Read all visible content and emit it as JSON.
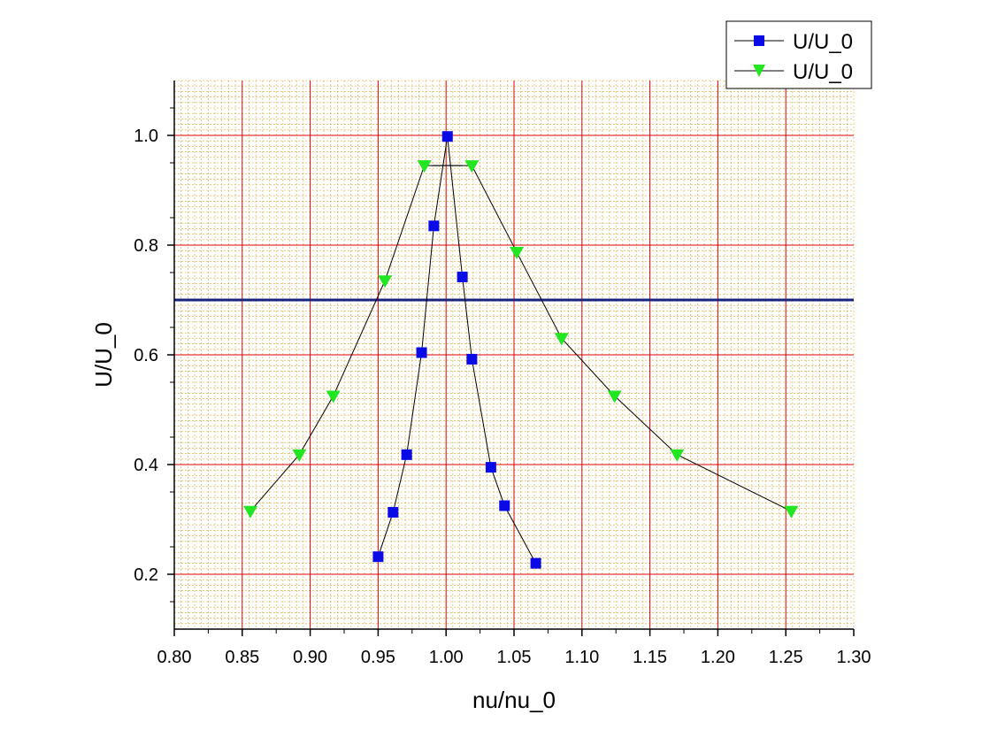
{
  "chart_data": {
    "type": "line",
    "xlabel": "nu/nu_0",
    "ylabel": "U/U_0",
    "xlim": [
      0.8,
      1.3
    ],
    "ylim": [
      0.1,
      1.1
    ],
    "x_ticks": [
      "0.80",
      "0.85",
      "0.90",
      "0.95",
      "1.00",
      "1.05",
      "1.10",
      "1.15",
      "1.20",
      "1.25",
      "1.30"
    ],
    "y_ticks": [
      "0.2",
      "0.4",
      "0.6",
      "0.8",
      "1.0"
    ],
    "grid": true,
    "minor_grid": true,
    "legend_position": "top-right",
    "reference_line": {
      "y": 0.7,
      "color": "#1a237e"
    },
    "series": [
      {
        "name": "U/U_0",
        "marker": "square",
        "color": "#0a0ae6",
        "x": [
          0.95,
          0.961,
          0.971,
          0.982,
          0.991,
          1.001,
          1.012,
          1.019,
          1.033,
          1.043,
          1.066
        ],
        "y": [
          0.232,
          0.313,
          0.418,
          0.604,
          0.835,
          0.998,
          0.742,
          0.592,
          0.395,
          0.325,
          0.22
        ]
      },
      {
        "name": "U/U_0",
        "marker": "triangle-down",
        "color": "#22e622",
        "x": [
          0.856,
          0.892,
          0.917,
          0.955,
          0.984,
          1.019,
          1.052,
          1.085,
          1.124,
          1.17,
          1.254
        ],
        "y": [
          0.315,
          0.418,
          0.525,
          0.735,
          0.945,
          0.945,
          0.787,
          0.63,
          0.525,
          0.418,
          0.315
        ]
      }
    ],
    "extra_segment": {
      "x": [
        0.99,
        1.012
      ],
      "y": [
        0.945,
        0.945
      ]
    }
  }
}
